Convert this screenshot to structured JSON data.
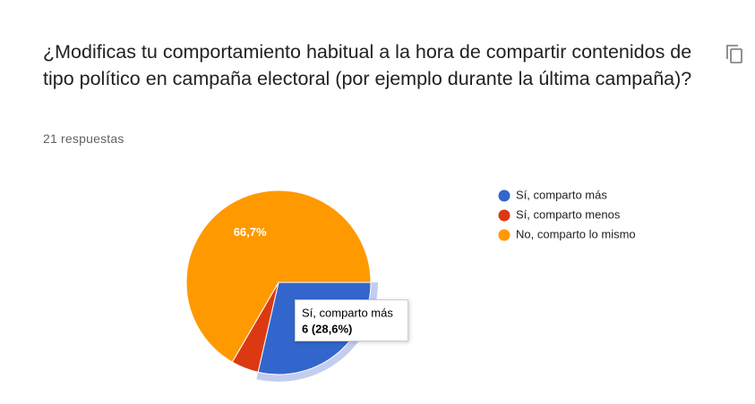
{
  "header": {
    "title": "¿Modificas tu comportamiento habitual a la hora de compartir contenidos de tipo político en campaña electoral (por ejemplo durante la última campaña)?",
    "responses": "21 respuestas"
  },
  "chart_data": {
    "type": "pie",
    "categories": [
      "Sí, comparto más",
      "Sí, comparto menos",
      "No, comparto lo mismo"
    ],
    "values": [
      28.6,
      4.8,
      66.7
    ],
    "value_labels": [
      null,
      null,
      "66,7%"
    ],
    "colors": [
      "#3366cc",
      "#dc3912",
      "#ff9900"
    ],
    "legend": "right",
    "tooltip": {
      "label": "Sí, comparto más",
      "value": "6 (28,6%)"
    }
  }
}
